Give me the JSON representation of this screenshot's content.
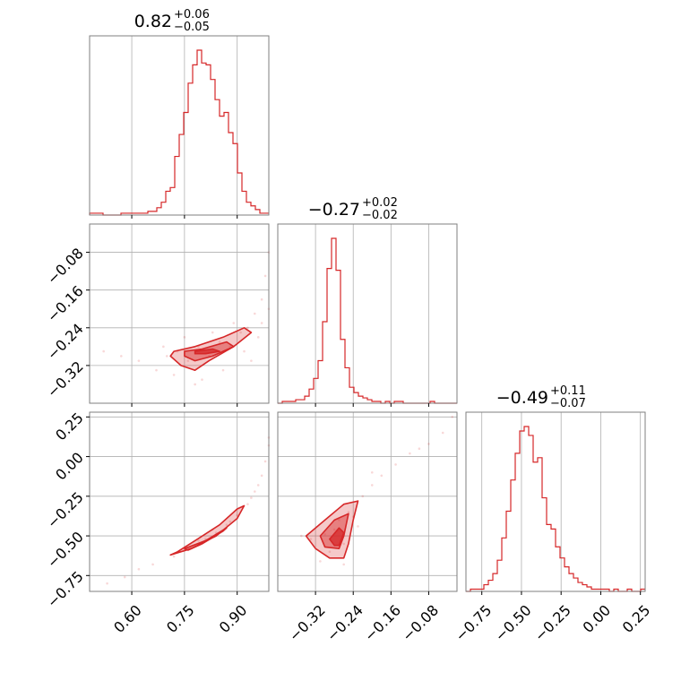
{
  "colors": {
    "accent": "#d62728",
    "grid": "#b0b0b0",
    "frame": "#7f7f7f"
  },
  "chart_data": {
    "type": "corner",
    "grid": true,
    "parameters": [
      {
        "range": [
          0.48,
          0.99
        ],
        "ticks": [
          0.6,
          0.75,
          0.9
        ],
        "tick_labels": [
          "0.60",
          "0.75",
          "0.90"
        ]
      },
      {
        "range": [
          -0.4,
          -0.02
        ],
        "ticks": [
          -0.32,
          -0.24,
          -0.16,
          -0.08
        ],
        "tick_labels": [
          "−0.32",
          "−0.24",
          "−0.16",
          "−0.08"
        ]
      },
      {
        "range": [
          -0.85,
          0.28
        ],
        "ticks": [
          -0.75,
          -0.5,
          -0.25,
          0.0,
          0.25
        ],
        "tick_labels": [
          "−0.75",
          "−0.50",
          "−0.25",
          "0.00",
          "0.25"
        ]
      }
    ],
    "titles": [
      {
        "value": "0.82",
        "upper": "+0.06",
        "lower": "−0.05"
      },
      {
        "value": "−0.27",
        "upper": "+0.02",
        "lower": "−0.02"
      },
      {
        "value": "−0.49",
        "upper": "+0.11",
        "lower": "−0.07"
      }
    ],
    "histograms": [
      {
        "param": 0,
        "edges_start": 0.48,
        "bin_width": 0.01275,
        "counts": [
          1,
          1,
          1,
          0,
          0,
          0,
          0,
          1,
          1,
          1,
          1,
          1,
          1,
          2,
          2,
          4,
          7,
          13,
          15,
          32,
          44,
          56,
          72,
          82,
          90,
          83,
          82,
          74,
          63,
          54,
          56,
          45,
          39,
          23,
          13,
          7,
          5,
          3,
          1,
          1
        ]
      },
      {
        "param": 1,
        "edges_start": -0.4,
        "bin_width": 0.0095,
        "counts": [
          0,
          1,
          1,
          1,
          2,
          2,
          4,
          8,
          14,
          24,
          46,
          76,
          93,
          75,
          36,
          20,
          9,
          6,
          4,
          3,
          2,
          1,
          1,
          0,
          1,
          0,
          1,
          1,
          0,
          0,
          0,
          0,
          0,
          0,
          1,
          0,
          0,
          0,
          0,
          0
        ]
      },
      {
        "param": 2,
        "edges_start": -0.85,
        "bin_width": 0.02825,
        "counts": [
          0,
          1,
          1,
          1,
          3,
          5,
          8,
          14,
          24,
          36,
          50,
          62,
          72,
          74,
          70,
          58,
          60,
          42,
          30,
          28,
          20,
          15,
          11,
          8,
          6,
          4,
          3,
          2,
          1,
          1,
          1,
          1,
          0,
          1,
          0,
          0,
          1,
          0,
          0,
          1
        ]
      }
    ],
    "scatter": [
      {
        "x_param": 0,
        "y_param": 1,
        "points": [
          [
            0.7,
            -0.3
          ],
          [
            0.73,
            -0.29
          ],
          [
            0.76,
            -0.31
          ],
          [
            0.79,
            -0.28
          ],
          [
            0.82,
            -0.3
          ],
          [
            0.85,
            -0.27
          ],
          [
            0.88,
            -0.28
          ],
          [
            0.91,
            -0.25
          ],
          [
            0.93,
            -0.24
          ],
          [
            0.95,
            -0.21
          ],
          [
            0.97,
            -0.18
          ],
          [
            0.98,
            -0.13
          ],
          [
            0.99,
            -0.08
          ],
          [
            0.62,
            -0.31
          ],
          [
            0.57,
            -0.3
          ],
          [
            0.67,
            -0.33
          ],
          [
            0.72,
            -0.34
          ],
          [
            0.8,
            -0.35
          ],
          [
            0.86,
            -0.33
          ],
          [
            0.92,
            -0.29
          ],
          [
            0.96,
            -0.26
          ],
          [
            0.99,
            -0.2
          ],
          [
            0.75,
            -0.26
          ],
          [
            0.83,
            -0.25
          ],
          [
            0.89,
            -0.23
          ],
          [
            0.52,
            -0.29
          ],
          [
            0.78,
            -0.36
          ],
          [
            0.94,
            -0.31
          ],
          [
            0.97,
            -0.23
          ],
          [
            0.69,
            -0.28
          ]
        ],
        "contours": [
          [
            [
              0.72,
              -0.29
            ],
            [
              0.78,
              -0.28
            ],
            [
              0.86,
              -0.26
            ],
            [
              0.92,
              -0.24
            ],
            [
              0.94,
              -0.25
            ],
            [
              0.89,
              -0.28
            ],
            [
              0.82,
              -0.31
            ],
            [
              0.78,
              -0.33
            ],
            [
              0.74,
              -0.32
            ],
            [
              0.71,
              -0.3
            ]
          ],
          [
            [
              0.75,
              -0.29
            ],
            [
              0.8,
              -0.285
            ],
            [
              0.87,
              -0.27
            ],
            [
              0.89,
              -0.28
            ],
            [
              0.83,
              -0.3
            ],
            [
              0.78,
              -0.31
            ],
            [
              0.75,
              -0.3
            ]
          ],
          [
            [
              0.78,
              -0.29
            ],
            [
              0.83,
              -0.285
            ],
            [
              0.85,
              -0.29
            ],
            [
              0.81,
              -0.295
            ],
            [
              0.78,
              -0.295
            ]
          ]
        ]
      },
      {
        "x_param": 0,
        "y_param": 2,
        "points": [
          [
            0.72,
            -0.63
          ],
          [
            0.75,
            -0.59
          ],
          [
            0.78,
            -0.56
          ],
          [
            0.81,
            -0.52
          ],
          [
            0.84,
            -0.48
          ],
          [
            0.87,
            -0.43
          ],
          [
            0.9,
            -0.37
          ],
          [
            0.93,
            -0.3
          ],
          [
            0.95,
            -0.22
          ],
          [
            0.97,
            -0.12
          ],
          [
            0.98,
            -0.03
          ],
          [
            0.99,
            0.07
          ],
          [
            0.66,
            -0.68
          ],
          [
            0.62,
            -0.71
          ],
          [
            0.58,
            -0.76
          ],
          [
            0.88,
            -0.41
          ],
          [
            0.83,
            -0.46
          ],
          [
            0.79,
            -0.53
          ],
          [
            0.96,
            -0.18
          ],
          [
            0.94,
            -0.26
          ],
          [
            0.99,
            0.12
          ],
          [
            0.53,
            -0.8
          ]
        ],
        "contours": [
          [
            [
              0.71,
              -0.62
            ],
            [
              0.77,
              -0.58
            ],
            [
              0.84,
              -0.5
            ],
            [
              0.9,
              -0.39
            ],
            [
              0.92,
              -0.31
            ],
            [
              0.9,
              -0.33
            ],
            [
              0.85,
              -0.43
            ],
            [
              0.78,
              -0.53
            ],
            [
              0.73,
              -0.6
            ]
          ],
          [
            [
              0.75,
              -0.58
            ],
            [
              0.81,
              -0.53
            ],
            [
              0.87,
              -0.45
            ],
            [
              0.86,
              -0.47
            ],
            [
              0.8,
              -0.55
            ],
            [
              0.76,
              -0.59
            ]
          ],
          [
            [
              0.79,
              -0.55
            ],
            [
              0.84,
              -0.5
            ],
            [
              0.83,
              -0.51
            ],
            [
              0.79,
              -0.56
            ]
          ]
        ]
      },
      {
        "x_param": 1,
        "y_param": 2,
        "points": [
          [
            -0.3,
            -0.49
          ],
          [
            -0.28,
            -0.46
          ],
          [
            -0.26,
            -0.55
          ],
          [
            -0.27,
            -0.4
          ],
          [
            -0.25,
            -0.35
          ],
          [
            -0.24,
            -0.38
          ],
          [
            -0.22,
            -0.25
          ],
          [
            -0.2,
            -0.18
          ],
          [
            -0.18,
            -0.12
          ],
          [
            -0.15,
            -0.05
          ],
          [
            -0.12,
            0.02
          ],
          [
            -0.08,
            0.08
          ],
          [
            -0.05,
            0.15
          ],
          [
            -0.03,
            0.25
          ],
          [
            -0.33,
            -0.52
          ],
          [
            -0.35,
            -0.5
          ],
          [
            -0.29,
            -0.6
          ],
          [
            -0.23,
            -0.44
          ],
          [
            -0.31,
            -0.66
          ],
          [
            -0.26,
            -0.68
          ],
          [
            -0.2,
            -0.1
          ],
          [
            -0.1,
            0.05
          ]
        ],
        "contours": [
          [
            [
              -0.34,
              -0.5
            ],
            [
              -0.3,
              -0.4
            ],
            [
              -0.26,
              -0.3
            ],
            [
              -0.23,
              -0.28
            ],
            [
              -0.24,
              -0.4
            ],
            [
              -0.25,
              -0.55
            ],
            [
              -0.26,
              -0.64
            ],
            [
              -0.29,
              -0.64
            ],
            [
              -0.32,
              -0.58
            ]
          ],
          [
            [
              -0.31,
              -0.5
            ],
            [
              -0.28,
              -0.4
            ],
            [
              -0.25,
              -0.36
            ],
            [
              -0.26,
              -0.5
            ],
            [
              -0.27,
              -0.58
            ],
            [
              -0.3,
              -0.57
            ]
          ],
          [
            [
              -0.29,
              -0.52
            ],
            [
              -0.27,
              -0.45
            ],
            [
              -0.26,
              -0.48
            ],
            [
              -0.27,
              -0.56
            ],
            [
              -0.28,
              -0.56
            ]
          ]
        ]
      }
    ]
  }
}
